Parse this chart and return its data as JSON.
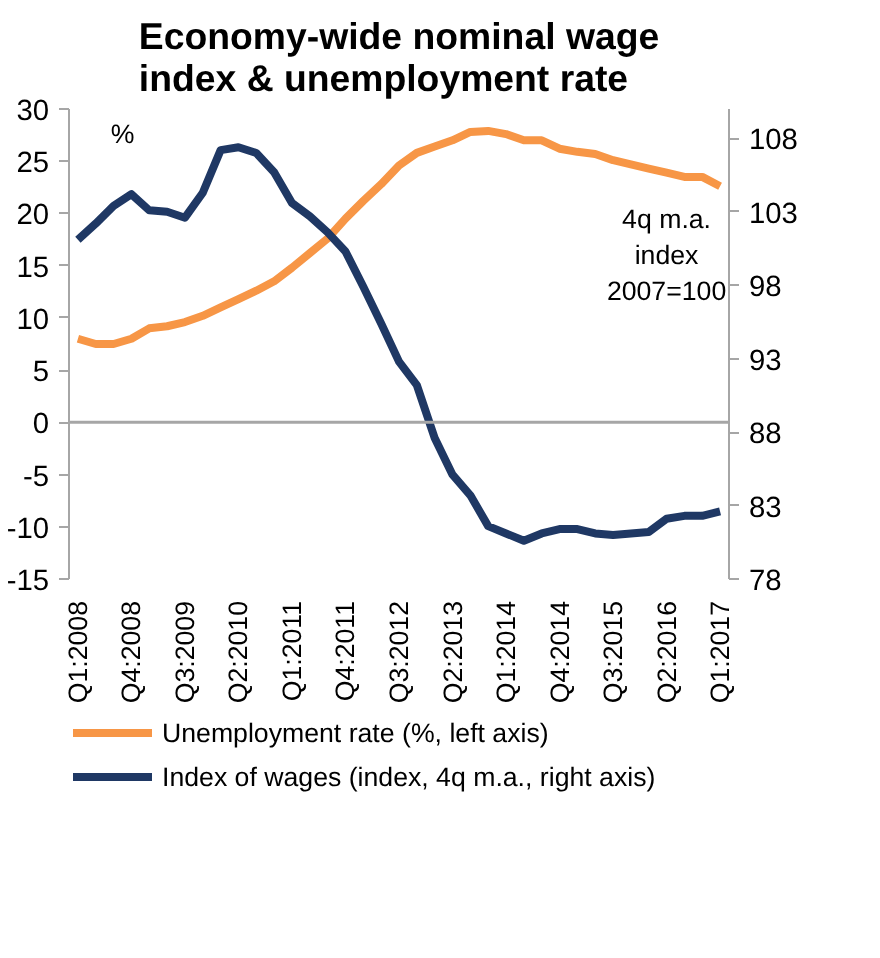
{
  "chart_data": {
    "type": "line",
    "title": "Economy-wide nominal wage index & unemployment rate",
    "categories": [
      "Q1:2008",
      null,
      null,
      "Q4:2008",
      null,
      null,
      "Q3:2009",
      null,
      null,
      "Q2:2010",
      null,
      null,
      "Q1:2011",
      null,
      null,
      "Q4:2011",
      null,
      null,
      "Q3:2012",
      null,
      null,
      "Q2:2013",
      null,
      null,
      "Q1:2014",
      null,
      null,
      "Q4:2014",
      null,
      null,
      "Q3:2015",
      null,
      null,
      "Q2:2016",
      null,
      null,
      "Q1:2017"
    ],
    "series": [
      {
        "name": "Unemployment rate (%, left axis)",
        "color": "#f79646",
        "values": [
          8,
          7.5,
          7.5,
          8,
          9,
          9.2,
          9.6,
          10.2,
          11,
          11.8,
          12.6,
          13.5,
          14.8,
          16.2,
          17.6,
          19.5,
          21.2,
          22.8,
          24.6,
          25.8,
          26.4,
          27,
          27.8,
          27.9,
          27.6,
          27,
          27,
          26.2,
          25.9,
          25.7,
          25.1,
          24.7,
          24.3,
          23.9,
          23.5,
          23.5,
          22.6
        ]
      },
      {
        "name": "Index of wages (index, 4q m.a., right axis)",
        "color": "#1f3864",
        "axis": "y2",
        "values": [
          101.1,
          102.2,
          103.4,
          104.2,
          103.1,
          103.0,
          102.6,
          104.3,
          107.2,
          107.4,
          107.0,
          105.7,
          103.6,
          102.7,
          101.6,
          100.3,
          97.9,
          95.4,
          92.8,
          91.2,
          87.6,
          85.1,
          83.7,
          81.6,
          81.1,
          80.6,
          81.1,
          81.4,
          81.4,
          81.1,
          81.0,
          81.1,
          81.2,
          82.1,
          82.3,
          82.3,
          82.6
        ]
      }
    ],
    "ylim": [
      -15,
      30
    ],
    "yticks": [
      -15,
      -10,
      -5,
      0,
      5,
      10,
      15,
      20,
      25,
      30
    ],
    "y2lim": [
      78,
      110
    ],
    "y2ticks": [
      78,
      83,
      88,
      93,
      98,
      103,
      108
    ],
    "ref_lines": [
      {
        "axis": "y",
        "value": 0,
        "color": "#a6a6a6"
      }
    ],
    "annotations": [
      "%",
      "4q m.a. index 2007=100"
    ],
    "legend": "bottom",
    "grid": false,
    "marker": "none",
    "line_style": "solid"
  }
}
